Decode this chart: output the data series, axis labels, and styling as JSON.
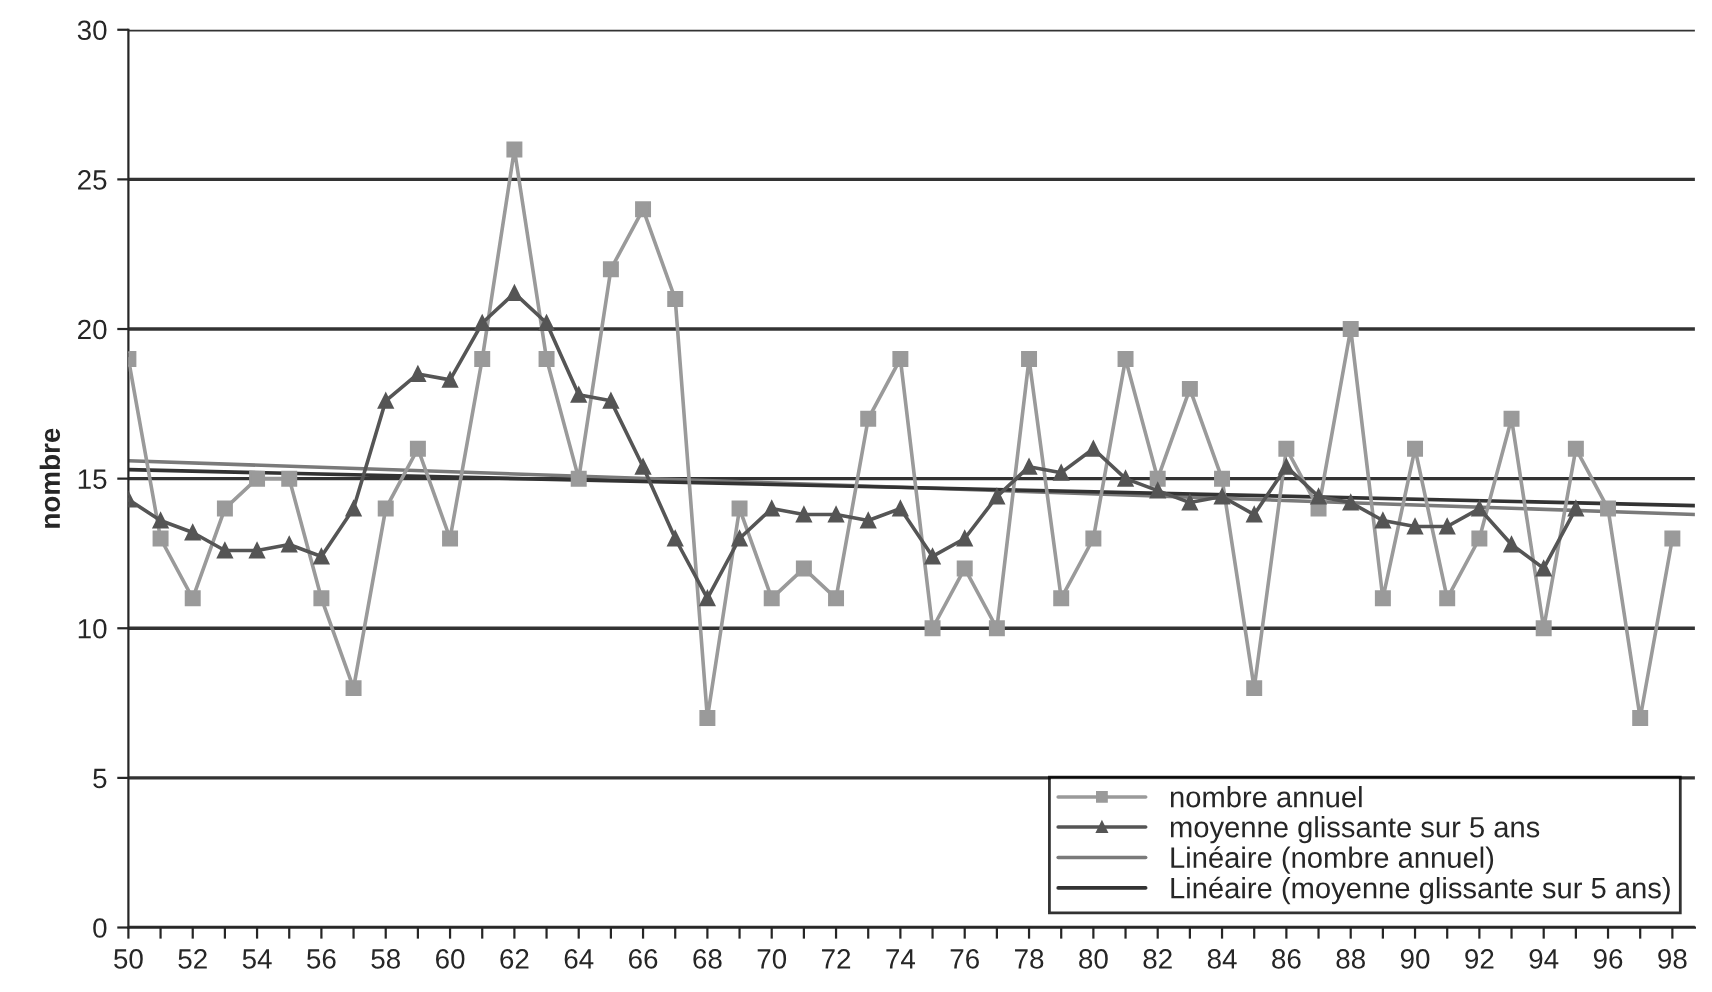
{
  "chart_data": {
    "type": "line",
    "ylabel": "nombre",
    "x": [
      50,
      51,
      52,
      53,
      54,
      55,
      56,
      57,
      58,
      59,
      60,
      61,
      62,
      63,
      64,
      65,
      66,
      67,
      68,
      69,
      70,
      71,
      72,
      73,
      74,
      75,
      76,
      77,
      78,
      79,
      80,
      81,
      82,
      83,
      84,
      85,
      86,
      87,
      88,
      89,
      90,
      91,
      92,
      93,
      94,
      95,
      96,
      97,
      98
    ],
    "series": [
      {
        "name": "nombre annuel",
        "color": "#9a9a9a",
        "marker": "square",
        "values": [
          19,
          13,
          11,
          14,
          15,
          15,
          11,
          8,
          14,
          16,
          13,
          19,
          26,
          19,
          15,
          22,
          24,
          21,
          7,
          14,
          11,
          12,
          11,
          17,
          19,
          10,
          12,
          10,
          19,
          11,
          13,
          19,
          15,
          18,
          15,
          8,
          16,
          14,
          20,
          11,
          16,
          11,
          13,
          17,
          10,
          16,
          14,
          7,
          13
        ]
      },
      {
        "name": "moyenne glissante sur 5 ans",
        "color": "#555555",
        "marker": "triangle",
        "x": [
          50,
          51,
          52,
          53,
          54,
          55,
          56,
          57,
          58,
          59,
          60,
          61,
          62,
          63,
          64,
          65,
          66,
          67,
          68,
          69,
          70,
          71,
          72,
          73,
          74,
          75,
          76,
          77,
          78,
          79,
          80,
          81,
          82,
          83,
          84,
          85,
          86,
          87,
          88,
          89,
          90,
          91,
          92,
          93,
          94,
          95
        ],
        "values": [
          14.3,
          13.6,
          13.2,
          12.6,
          12.6,
          12.8,
          12.4,
          14,
          17.6,
          18.5,
          18.3,
          20.2,
          21.2,
          20.2,
          17.8,
          17.6,
          15.4,
          13,
          11,
          13,
          14,
          13.8,
          13.8,
          13.6,
          14,
          12.4,
          13,
          14.4,
          15.4,
          15.2,
          16,
          15,
          14.6,
          14.2,
          14.4,
          13.8,
          15.4,
          14.4,
          14.2,
          13.6,
          13.4,
          13.4,
          14,
          12.8,
          12,
          14
        ]
      },
      {
        "name": "Linéaire (nombre annuel)",
        "color": "#7a7a7a",
        "marker": "none",
        "x": [
          50,
          98.7
        ],
        "values": [
          15.6,
          13.8
        ]
      },
      {
        "name": "Linéaire (moyenne glissante sur 5 ans)",
        "color": "#333333",
        "marker": "none",
        "x": [
          50,
          98.7
        ],
        "values": [
          15.3,
          14.1
        ]
      }
    ],
    "xlim": [
      50,
      98.7
    ],
    "ylim": [
      0,
      30
    ],
    "yticks": [
      0,
      5,
      10,
      15,
      20,
      25,
      30
    ],
    "xticks": [
      50,
      {
        "value": 51,
        "label": null
      },
      52,
      {
        "value": 53,
        "label": null
      },
      54,
      {
        "value": 55,
        "label": null
      },
      56,
      {
        "value": 57,
        "label": null
      },
      58,
      {
        "value": 59,
        "label": null
      },
      60,
      {
        "value": 61,
        "label": null
      },
      62,
      {
        "value": 63,
        "label": null
      },
      64,
      {
        "value": 65,
        "label": null
      },
      66,
      {
        "value": 67,
        "label": null
      },
      68,
      {
        "value": 69,
        "label": null
      },
      70,
      {
        "value": 71,
        "label": null
      },
      72,
      {
        "value": 73,
        "label": null
      },
      74,
      {
        "value": 75,
        "label": null
      },
      76,
      {
        "value": 77,
        "label": null
      },
      78,
      {
        "value": 79,
        "label": null
      },
      80,
      {
        "value": 81,
        "label": null
      },
      82,
      {
        "value": 83,
        "label": null
      },
      84,
      {
        "value": 85,
        "label": null
      },
      86,
      {
        "value": 87,
        "label": null
      },
      88,
      {
        "value": 89,
        "label": null
      },
      90,
      {
        "value": 91,
        "label": null
      },
      92,
      {
        "value": 93,
        "label": null
      },
      94,
      {
        "value": 95,
        "label": null
      },
      96,
      {
        "value": 97,
        "label": null
      },
      98
    ],
    "grid": "y",
    "legend": "bottom right"
  }
}
